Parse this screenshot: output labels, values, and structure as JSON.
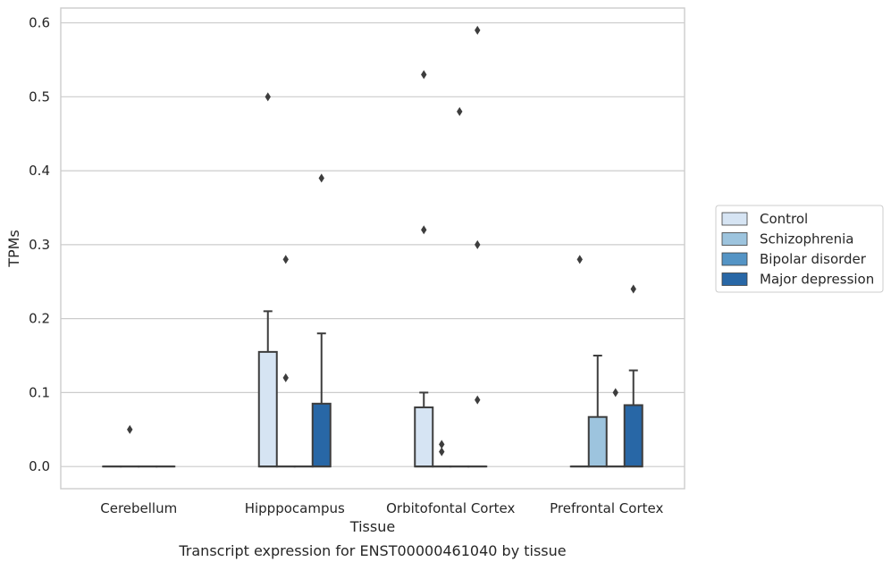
{
  "chart_data": {
    "type": "box",
    "title": "Transcript expression for ENST00000461040 by tissue",
    "xlabel": "Tissue",
    "ylabel": "TPMs",
    "ylim": [
      -0.03,
      0.62
    ],
    "yticks": [
      "0.0",
      "0.1",
      "0.2",
      "0.3",
      "0.4",
      "0.5",
      "0.6"
    ],
    "grid": true,
    "legend_position": "right",
    "categories": [
      "Cerebellum",
      "Hipppocampus",
      "Orbitofontal Cortex",
      "Prefrontal Cortex"
    ],
    "series": [
      {
        "name": "Control",
        "color": "#d6e4f3",
        "boxes": [
          {
            "q1": 0,
            "median": 0,
            "q3": 0,
            "whislo": 0,
            "whishi": 0,
            "fliers": []
          },
          {
            "q1": 0,
            "median": 0,
            "q3": 0.155,
            "whislo": 0,
            "whishi": 0.21,
            "fliers": [
              0.5
            ]
          },
          {
            "q1": 0,
            "median": 0,
            "q3": 0.08,
            "whislo": 0,
            "whishi": 0.1,
            "fliers": [
              0.32,
              0.53
            ]
          },
          {
            "q1": 0,
            "median": 0,
            "q3": 0,
            "whislo": 0,
            "whishi": 0,
            "fliers": [
              0.28
            ]
          }
        ]
      },
      {
        "name": "Schizophrenia",
        "color": "#9dc4de",
        "boxes": [
          {
            "q1": 0,
            "median": 0,
            "q3": 0,
            "whislo": 0,
            "whishi": 0,
            "fliers": [
              0.05
            ]
          },
          {
            "q1": 0,
            "median": 0,
            "q3": 0,
            "whislo": 0,
            "whishi": 0,
            "fliers": [
              0.28,
              0.12
            ]
          },
          {
            "q1": 0,
            "median": 0,
            "q3": 0,
            "whislo": 0,
            "whishi": 0,
            "fliers": [
              0.03,
              0.02
            ]
          },
          {
            "q1": 0,
            "median": 0,
            "q3": 0.067,
            "whislo": 0,
            "whishi": 0.15,
            "fliers": []
          }
        ]
      },
      {
        "name": "Bipolar disorder",
        "color": "#5494c5",
        "boxes": [
          {
            "q1": 0,
            "median": 0,
            "q3": 0,
            "whislo": 0,
            "whishi": 0,
            "fliers": []
          },
          {
            "q1": 0,
            "median": 0,
            "q3": 0,
            "whislo": 0,
            "whishi": 0,
            "fliers": []
          },
          {
            "q1": 0,
            "median": 0,
            "q3": 0,
            "whislo": 0,
            "whishi": 0,
            "fliers": [
              0.48
            ]
          },
          {
            "q1": 0,
            "median": 0,
            "q3": 0,
            "whislo": 0,
            "whishi": 0,
            "fliers": [
              0.1
            ]
          }
        ]
      },
      {
        "name": "Major depression",
        "color": "#2867a6",
        "boxes": [
          {
            "q1": 0,
            "median": 0,
            "q3": 0,
            "whislo": 0,
            "whishi": 0,
            "fliers": []
          },
          {
            "q1": 0,
            "median": 0,
            "q3": 0.085,
            "whislo": 0,
            "whishi": 0.18,
            "fliers": [
              0.39
            ]
          },
          {
            "q1": 0,
            "median": 0,
            "q3": 0,
            "whislo": 0,
            "whishi": 0,
            "fliers": [
              0.59,
              0.3,
              0.09
            ]
          },
          {
            "q1": 0,
            "median": 0,
            "q3": 0.083,
            "whislo": 0,
            "whishi": 0.13,
            "fliers": [
              0.24
            ]
          }
        ]
      }
    ]
  }
}
